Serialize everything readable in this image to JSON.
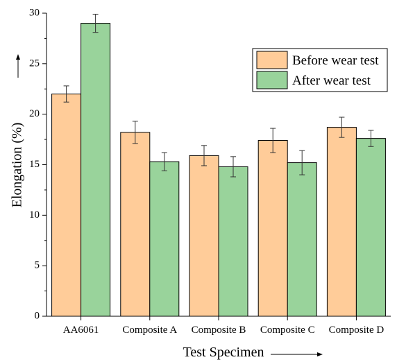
{
  "chart_data": {
    "type": "bar",
    "xlabel": "Test Specimen",
    "ylabel": "Elongation (%)",
    "categories": [
      "AA6061",
      "Composite A",
      "Composite B",
      "Composite C",
      "Composite D"
    ],
    "ylim": [
      0,
      30
    ],
    "yticks": [
      0,
      5,
      10,
      15,
      20,
      25,
      30
    ],
    "grid": false,
    "legend_position": "top-right",
    "series": [
      {
        "name": "Before wear test",
        "color": "#FFCC99",
        "values": [
          22.0,
          18.2,
          15.9,
          17.4,
          18.7
        ],
        "errors": [
          0.8,
          1.1,
          1.0,
          1.2,
          1.0
        ]
      },
      {
        "name": "After wear test",
        "color": "#99D39B",
        "values": [
          29.0,
          15.3,
          14.8,
          15.2,
          17.6
        ],
        "errors": [
          0.9,
          0.9,
          1.0,
          1.2,
          0.8
        ]
      }
    ]
  }
}
